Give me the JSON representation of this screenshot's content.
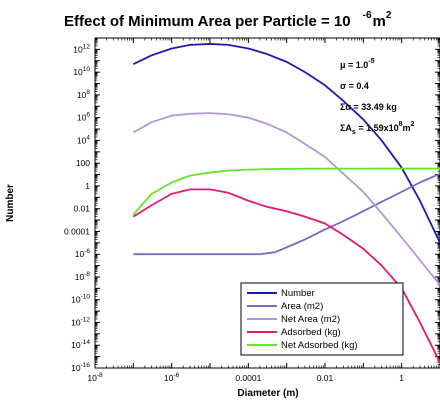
{
  "chart_data": {
    "type": "line",
    "title": {
      "main": "Effect of Minimum Area per Particle = 10",
      "exponent": "-6",
      "unit": "m",
      "unit_exponent": "2"
    },
    "xlabel": "Diameter (m)",
    "ylabel": "Number",
    "x_scale": "log",
    "y_scale": "log",
    "xlim": [
      1e-08,
      10
    ],
    "ylim": [
      1e-16,
      10000000000000.0
    ],
    "x_ticks": [
      {
        "value": 1e-08,
        "base": "10",
        "exp": "-8"
      },
      {
        "value": 1e-06,
        "base": "10",
        "exp": "-6"
      },
      {
        "value": 0.0001,
        "base": "0.0001",
        "exp": ""
      },
      {
        "value": 0.01,
        "base": "0.01",
        "exp": ""
      },
      {
        "value": 1,
        "base": "1",
        "exp": ""
      }
    ],
    "y_ticks": [
      {
        "value": 1000000000000.0,
        "base": "10",
        "exp": "12"
      },
      {
        "value": 10000000000.0,
        "base": "10",
        "exp": "10"
      },
      {
        "value": 100000000.0,
        "base": "10",
        "exp": "8"
      },
      {
        "value": 1000000.0,
        "base": "10",
        "exp": "6"
      },
      {
        "value": 10000.0,
        "base": "10",
        "exp": "4"
      },
      {
        "value": 100,
        "base": "100",
        "exp": ""
      },
      {
        "value": 1,
        "base": "1",
        "exp": ""
      },
      {
        "value": 0.01,
        "base": "0.01",
        "exp": ""
      },
      {
        "value": 0.0001,
        "base": "0.0001",
        "exp": ""
      },
      {
        "value": 1e-06,
        "base": "10",
        "exp": "-6"
      },
      {
        "value": 1e-08,
        "base": "10",
        "exp": "-8"
      },
      {
        "value": 1e-10,
        "base": "10",
        "exp": "-10"
      },
      {
        "value": 1e-12,
        "base": "10",
        "exp": "-12"
      },
      {
        "value": 1e-14,
        "base": "10",
        "exp": "-14"
      },
      {
        "value": 1e-16,
        "base": "10",
        "exp": "-16"
      }
    ],
    "annotations": [
      {
        "base": "μ = 1.0",
        "sup": "-5",
        "tail": "",
        "sup2": ""
      },
      {
        "base": "σ = 0.4",
        "sup": "",
        "tail": "",
        "sup2": ""
      },
      {
        "base": "Σα = 33.49 kg",
        "sup": "",
        "tail": "",
        "sup2": ""
      },
      {
        "base": "ΣA",
        "sub": "s",
        "rest": " = 1.59x10",
        "sup": "8",
        "tail": "m",
        "sup2": "2"
      }
    ],
    "legend_position": "bottom-right",
    "series": [
      {
        "name": "Number",
        "color": "#1a1ab4",
        "x": [
          1e-07,
          3e-07,
          1e-06,
          3e-06,
          1e-05,
          3e-05,
          0.0001,
          0.0003,
          0.001,
          0.003,
          0.01,
          0.03,
          0.1,
          0.3,
          1,
          3,
          10
        ],
        "y": [
          50000000000.0,
          300000000000.0,
          1200000000000.0,
          2500000000000.0,
          3000000000000.0,
          2500000000000.0,
          1200000000000.0,
          400000000000.0,
          80000000000.0,
          10000000000.0,
          700000000.0,
          30000000.0,
          700000.0,
          10000.0,
          40,
          0.05,
          1e-05
        ]
      },
      {
        "name": "Area (m2)",
        "color": "#7b68c8",
        "x": [
          1e-07,
          3e-07,
          1e-06,
          3e-06,
          1e-05,
          3e-05,
          0.0001,
          0.0002,
          0.0005,
          0.001,
          0.003,
          0.01,
          0.03,
          0.1,
          0.3,
          1,
          3,
          10
        ],
        "y": [
          1e-06,
          1e-06,
          1e-06,
          1e-06,
          1e-06,
          1e-06,
          1e-06,
          1e-06,
          1.5e-06,
          4e-06,
          2e-05,
          0.00015,
          0.0008,
          0.006,
          0.04,
          0.3,
          2,
          12
        ]
      },
      {
        "name": "Net Area (m2)",
        "color": "#b496d2",
        "x": [
          1e-07,
          3e-07,
          1e-06,
          3e-06,
          1e-05,
          3e-05,
          0.0001,
          0.0003,
          0.001,
          0.003,
          0.01,
          0.03,
          0.1,
          0.3,
          1,
          3,
          10
        ],
        "y": [
          50000.0,
          400000.0,
          1500000.0,
          2200000.0,
          2500000.0,
          2000000.0,
          1000000.0,
          300000.0,
          50000.0,
          5000.0,
          350,
          12,
          0.3,
          0.004,
          3e-05,
          3e-07,
          2e-09
        ]
      },
      {
        "name": "Adsorbed (kg)",
        "color": "#e6196e",
        "x": [
          1e-07,
          3e-07,
          1e-06,
          3e-06,
          1e-05,
          3e-05,
          0.0001,
          0.0003,
          0.001,
          0.003,
          0.01,
          0.03,
          0.1,
          0.3,
          1,
          3,
          10
        ],
        "y": [
          0.002,
          0.02,
          0.2,
          0.5,
          0.5,
          0.25,
          0.05,
          0.015,
          0.006,
          0.002,
          0.0005,
          5e-05,
          3e-06,
          1e-07,
          1e-09,
          1e-12,
          3e-16
        ]
      },
      {
        "name": "Net Adsorbed (kg)",
        "color": "#64e628",
        "x": [
          1e-07,
          3e-07,
          1e-06,
          3e-06,
          1e-05,
          3e-05,
          0.0001,
          0.0003,
          0.001,
          0.01,
          0.1,
          1,
          10
        ],
        "y": [
          0.003,
          0.2,
          2,
          8,
          15,
          22,
          27,
          30,
          32,
          33,
          33.4,
          33.49,
          33.49
        ]
      }
    ]
  }
}
